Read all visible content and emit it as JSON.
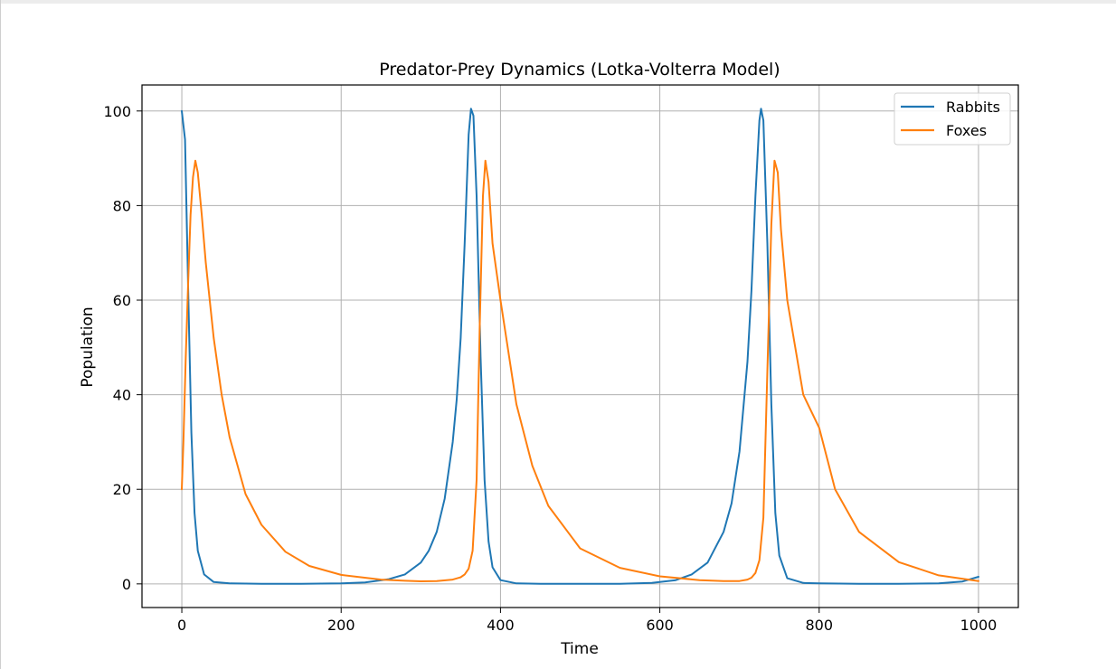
{
  "chart_data": {
    "type": "line",
    "title": "Predator-Prey Dynamics (Lotka-Volterra Model)",
    "xlabel": "Time",
    "ylabel": "Population",
    "xlim": [
      -50,
      1050
    ],
    "ylim": [
      -5,
      105.5
    ],
    "xticks": [
      0,
      200,
      400,
      600,
      800,
      1000
    ],
    "yticks": [
      0,
      20,
      40,
      60,
      80,
      100
    ],
    "grid": true,
    "legend_position": "top-right",
    "series": [
      {
        "name": "Rabbits",
        "color": "#1f77b4",
        "x": [
          0,
          4,
          8,
          12,
          16,
          20,
          28,
          40,
          60,
          100,
          150,
          200,
          230,
          260,
          280,
          300,
          310,
          320,
          330,
          340,
          345,
          350,
          355,
          360,
          363,
          366,
          370,
          375,
          380,
          385,
          390,
          400,
          420,
          450,
          500,
          550,
          590,
          620,
          640,
          660,
          680,
          690,
          700,
          710,
          715,
          720,
          725,
          727,
          730,
          735,
          740,
          745,
          750,
          760,
          780,
          800,
          850,
          900,
          950,
          980,
          1000
        ],
        "y": [
          100,
          94,
          62,
          32,
          15,
          7,
          2,
          0.4,
          0.1,
          0,
          0,
          0.1,
          0.3,
          1,
          2,
          4.5,
          7,
          11,
          18,
          30,
          39,
          52,
          72,
          95,
          100.5,
          99,
          82,
          48,
          22,
          9,
          3.5,
          0.8,
          0.1,
          0,
          0,
          0,
          0.2,
          0.8,
          2,
          4.5,
          11,
          17,
          28,
          47,
          62,
          82,
          98,
          100.5,
          98,
          72,
          38,
          15,
          6,
          1.2,
          0.2,
          0.1,
          0,
          0,
          0.1,
          0.5,
          1.5
        ]
      },
      {
        "name": "Foxes",
        "color": "#ff7f0e",
        "x": [
          0,
          2,
          5,
          8,
          11,
          14,
          17,
          20,
          25,
          30,
          40,
          50,
          60,
          80,
          100,
          130,
          160,
          200,
          250,
          280,
          300,
          320,
          340,
          350,
          355,
          360,
          365,
          370,
          374,
          378,
          381,
          385,
          390,
          400,
          420,
          440,
          460,
          500,
          550,
          600,
          650,
          680,
          700,
          710,
          715,
          720,
          725,
          730,
          735,
          740,
          744,
          748,
          752,
          760,
          780,
          800,
          820,
          850,
          900,
          950,
          1000
        ],
        "y": [
          20,
          30,
          48,
          64,
          78,
          86,
          89.5,
          87,
          78,
          68,
          52,
          40,
          31,
          19,
          12.5,
          6.8,
          3.8,
          1.9,
          0.9,
          0.65,
          0.55,
          0.6,
          0.9,
          1.4,
          2,
          3.2,
          7,
          22,
          55,
          82,
          89.5,
          85,
          72,
          60,
          38,
          25,
          16.5,
          7.5,
          3.4,
          1.6,
          0.8,
          0.6,
          0.6,
          0.9,
          1.3,
          2.3,
          5,
          14,
          45,
          76,
          89.5,
          87,
          75,
          60,
          40,
          33,
          20,
          11,
          4.6,
          1.8,
          0.6
        ]
      }
    ]
  }
}
